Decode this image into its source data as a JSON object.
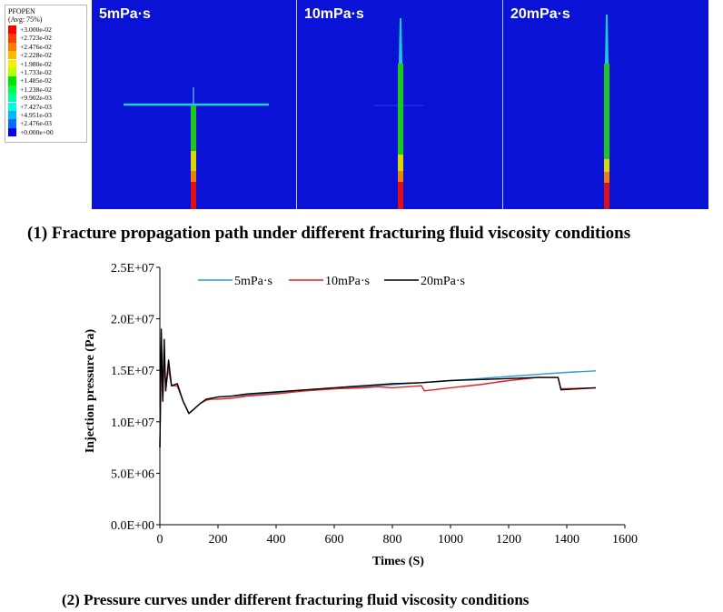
{
  "legend": {
    "title_line1": "PFOPEN",
    "title_line2": "(Avg: 75%)",
    "entries": [
      {
        "label": "+3.000e-02",
        "color": "#ff0000"
      },
      {
        "label": "+2.723e-02",
        "color": "#ff3d00"
      },
      {
        "label": "+2.476e-02",
        "color": "#ff7b00"
      },
      {
        "label": "+2.228e-02",
        "color": "#ffb900"
      },
      {
        "label": "+1.980e-02",
        "color": "#f2f200"
      },
      {
        "label": "+1.733e-02",
        "color": "#b5ff00"
      },
      {
        "label": "+1.485e-02",
        "color": "#00e600"
      },
      {
        "label": "+1.238e-02",
        "color": "#00ff46"
      },
      {
        "label": "+9.902e-03",
        "color": "#00ff9f"
      },
      {
        "label": "+7.427e-03",
        "color": "#00ffe0"
      },
      {
        "label": "+4.951e-03",
        "color": "#00b9ff"
      },
      {
        "label": "+2.476e-03",
        "color": "#0070ff"
      },
      {
        "label": "+0.000e+00",
        "color": "#0000ff"
      }
    ]
  },
  "panels": [
    {
      "label": "5mPa·s"
    },
    {
      "label": "10mPa·s"
    },
    {
      "label": "20mPa·s"
    }
  ],
  "caption_top": "(1)    Fracture propagation path under different fracturing fluid viscosity conditions",
  "caption_bottom": "(2)    Pressure curves under different fracturing fluid viscosity conditions",
  "chart_data": {
    "type": "line",
    "xlabel": "Times (S)",
    "ylabel": "Injection pressure (Pa)",
    "xlim": [
      0,
      1600
    ],
    "ylim": [
      0,
      25000000
    ],
    "x_ticks": [
      "0",
      "200",
      "400",
      "600",
      "800",
      "1000",
      "1200",
      "1400",
      "1600"
    ],
    "y_ticks": [
      "0.0E+00",
      "5.0E+06",
      "1.0E+07",
      "1.5E+07",
      "2.0E+07",
      "2.5E+07"
    ],
    "grid": false,
    "legend_position": "top",
    "series": [
      {
        "name": "5mPa·s",
        "color": "#2e9bd6",
        "x": [
          0,
          5,
          10,
          15,
          20,
          30,
          40,
          60,
          80,
          100,
          120,
          140,
          160,
          180,
          200,
          250,
          300,
          400,
          500,
          600,
          700,
          800,
          900,
          1000,
          1100,
          1200,
          1300,
          1400,
          1500
        ],
        "y": [
          7500000,
          17000000,
          12500000,
          16500000,
          13500000,
          15000000,
          13500000,
          13500000,
          12000000,
          10800000,
          11300000,
          11800000,
          12200000,
          12300000,
          12400000,
          12500000,
          12600000,
          12800000,
          13000000,
          13200000,
          13400000,
          13600000,
          13800000,
          14000000,
          14200000,
          14400000,
          14600000,
          14800000,
          14950000
        ]
      },
      {
        "name": "10mPa·s",
        "color": "#e82020",
        "x": [
          0,
          5,
          10,
          15,
          20,
          30,
          40,
          60,
          80,
          100,
          120,
          140,
          160,
          180,
          200,
          250,
          300,
          400,
          500,
          600,
          700,
          750,
          800,
          850,
          900,
          910,
          1000,
          1100,
          1200,
          1300,
          1370,
          1380,
          1500
        ],
        "y": [
          7500000,
          17500000,
          12000000,
          17000000,
          13000000,
          15500000,
          13500000,
          13500000,
          12000000,
          10800000,
          11300000,
          11800000,
          12100000,
          12200000,
          12200000,
          12300000,
          12500000,
          12700000,
          13000000,
          13200000,
          13300000,
          13400000,
          13300000,
          13400000,
          13500000,
          13000000,
          13300000,
          13600000,
          14000000,
          14300000,
          14300000,
          13200000,
          13300000
        ]
      },
      {
        "name": "20mPa·s",
        "color": "#000000",
        "x": [
          0,
          5,
          10,
          15,
          20,
          30,
          40,
          60,
          80,
          100,
          120,
          140,
          160,
          180,
          200,
          250,
          300,
          400,
          500,
          600,
          700,
          800,
          900,
          1000,
          1100,
          1200,
          1300,
          1370,
          1380,
          1500
        ],
        "y": [
          7500000,
          19000000,
          12000000,
          18000000,
          13000000,
          16000000,
          13500000,
          13700000,
          12000000,
          10800000,
          11300000,
          11800000,
          12200000,
          12300000,
          12400000,
          12500000,
          12700000,
          12900000,
          13100000,
          13300000,
          13500000,
          13700000,
          13800000,
          14000000,
          14100000,
          14200000,
          14300000,
          14300000,
          13100000,
          13300000
        ]
      }
    ]
  }
}
